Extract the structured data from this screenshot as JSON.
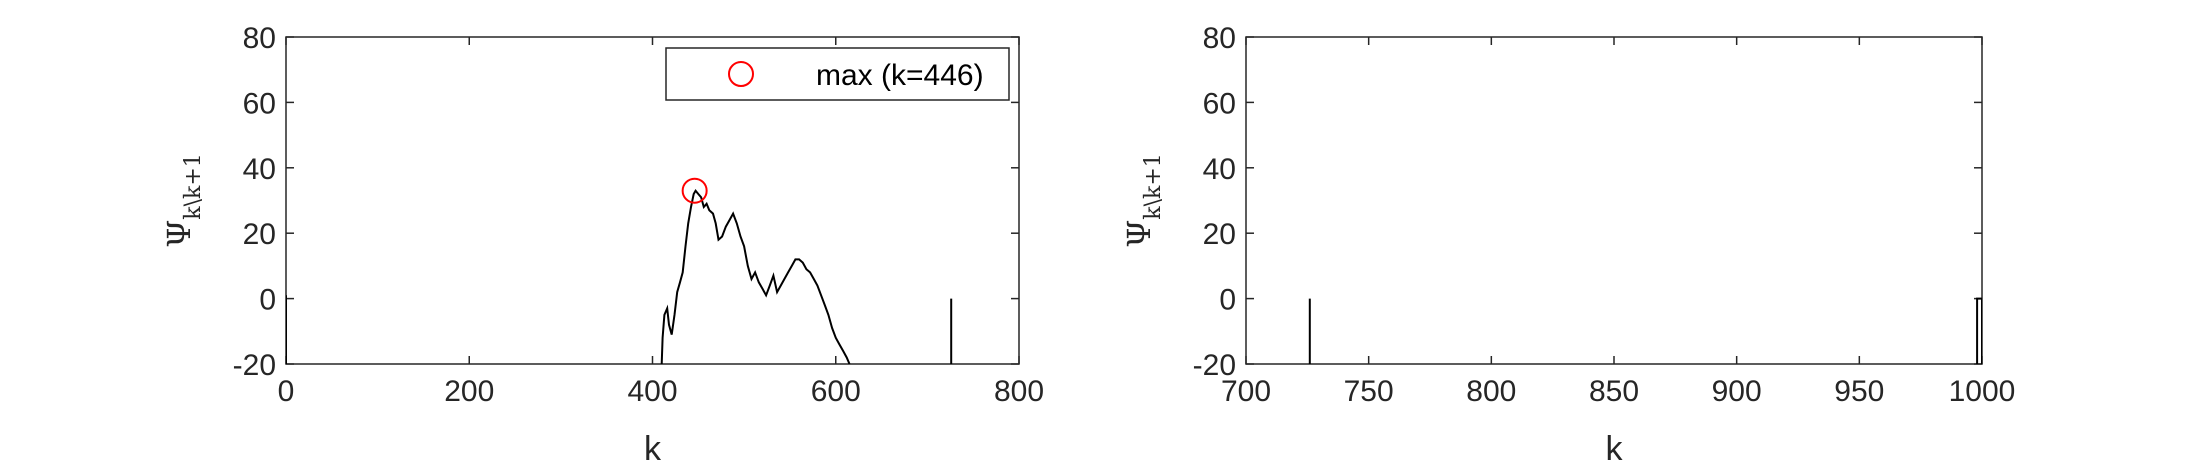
{
  "chart_data": [
    {
      "type": "line",
      "title": "",
      "xlabel": "k",
      "ylabel_main": "Ψ",
      "ylabel_sub": "k\\k+1",
      "xlim": [
        0,
        800
      ],
      "ylim": [
        -20,
        80
      ],
      "xticks": [
        "0",
        "200",
        "400",
        "600",
        "800"
      ],
      "yticks": [
        "-20",
        "0",
        "20",
        "40",
        "60",
        "80"
      ],
      "grid": false,
      "legend": {
        "placement": "top-right",
        "entries": [
          "max (k=446)"
        ]
      },
      "max_marker": {
        "x": 446,
        "y": 33
      },
      "series": [
        {
          "color": "#000000",
          "segments": [
            [
              [
                0,
                -20
              ],
              [
                0,
                1
              ]
            ],
            [
              [
                410,
                -20
              ],
              [
                411,
                -12
              ],
              [
                413,
                -5
              ],
              [
                416,
                -3
              ],
              [
                418,
                -8
              ],
              [
                421,
                -11
              ],
              [
                424,
                -5
              ],
              [
                427,
                2
              ],
              [
                430,
                5
              ],
              [
                433,
                8
              ],
              [
                436,
                16
              ],
              [
                439,
                23
              ],
              [
                442,
                28
              ],
              [
                445,
                32
              ],
              [
                447,
                33
              ],
              [
                450,
                32
              ],
              [
                453,
                31
              ],
              [
                456,
                28
              ],
              [
                459,
                29
              ],
              [
                462,
                27
              ],
              [
                466,
                26
              ],
              [
                469,
                23
              ],
              [
                472,
                18
              ],
              [
                476,
                19
              ],
              [
                480,
                22
              ],
              [
                484,
                24
              ],
              [
                488,
                26
              ],
              [
                492,
                23
              ],
              [
                496,
                19
              ],
              [
                500,
                16
              ],
              [
                504,
                10
              ],
              [
                508,
                6
              ],
              [
                512,
                8
              ],
              [
                516,
                5
              ],
              [
                520,
                3
              ],
              [
                524,
                1
              ],
              [
                528,
                4
              ],
              [
                532,
                7
              ],
              [
                536,
                2
              ],
              [
                540,
                4
              ],
              [
                544,
                6
              ],
              [
                548,
                8
              ],
              [
                552,
                10
              ],
              [
                556,
                12
              ],
              [
                560,
                12
              ],
              [
                564,
                11
              ],
              [
                568,
                9
              ],
              [
                572,
                8
              ],
              [
                576,
                6
              ],
              [
                580,
                4
              ],
              [
                584,
                1
              ],
              [
                588,
                -2
              ],
              [
                592,
                -5
              ],
              [
                596,
                -9
              ],
              [
                600,
                -12
              ],
              [
                604,
                -14
              ],
              [
                608,
                -16
              ],
              [
                612,
                -18
              ],
              [
                615,
                -20
              ]
            ],
            [
              [
                726,
                -20
              ],
              [
                726,
                0
              ]
            ]
          ]
        }
      ]
    },
    {
      "type": "line",
      "title": "",
      "xlabel": "k",
      "ylabel_main": "Ψ",
      "ylabel_sub": "k\\k+1",
      "xlim": [
        700,
        1000
      ],
      "ylim": [
        -20,
        80
      ],
      "xticks": [
        "700",
        "750",
        "800",
        "850",
        "900",
        "950",
        "1000"
      ],
      "yticks": [
        "-20",
        "0",
        "20",
        "40",
        "60",
        "80"
      ],
      "grid": false,
      "series": [
        {
          "color": "#000000",
          "segments": [
            [
              [
                726,
                -20
              ],
              [
                726,
                0
              ]
            ],
            [
              [
                998,
                -20
              ],
              [
                998,
                0
              ],
              [
                1000,
                0
              ],
              [
                1000,
                -20
              ]
            ]
          ]
        }
      ]
    }
  ]
}
